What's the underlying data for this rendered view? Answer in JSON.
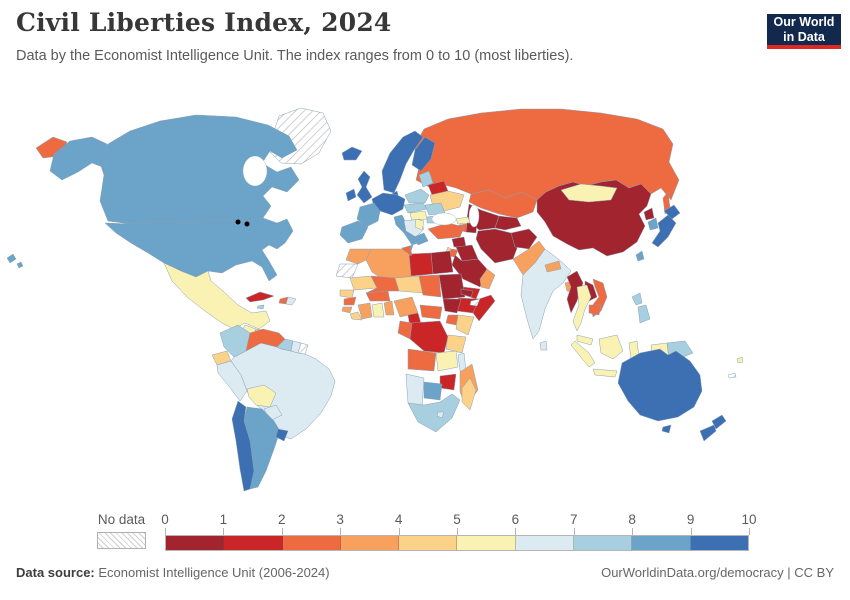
{
  "header": {
    "title": "Civil Liberties Index, 2024",
    "subtitle": "Data by the Economist Intelligence Unit. The index ranges from 0 to 10 (most liberties).",
    "logo": {
      "line1": "Our World",
      "line2": "in Data"
    }
  },
  "footer": {
    "data_source_label": "Data source:",
    "data_source_value": " Economist Intelligence Unit (2006-2024)",
    "url": "OurWorldinData.org/democracy",
    "separator": " | ",
    "license": "CC BY"
  },
  "chart_data": {
    "type": "heatmap",
    "subtype": "world-choropleth",
    "title": "Civil Liberties Index, 2024",
    "year": "2024",
    "unit_range": [
      0,
      10
    ],
    "scale": {
      "no_data_label": "No data",
      "ticks": [
        "0",
        "1",
        "2",
        "3",
        "4",
        "5",
        "6",
        "7",
        "8",
        "9",
        "10"
      ],
      "bin_labels": [
        "0-1",
        "1-2",
        "2-3",
        "3-4",
        "4-5",
        "5-6",
        "6-7",
        "7-8",
        "8-9",
        "9-10"
      ],
      "bin_colors": [
        "#a2242f",
        "#ca2628",
        "#ee6a40",
        "#f8a15e",
        "#fbd287",
        "#faf2b2",
        "#dcebf2",
        "#a7cfe0",
        "#6ba3c9",
        "#3d6fb3"
      ]
    },
    "regions": {
      "canada": 8,
      "alaska": 8,
      "usa": 8,
      "hawaii": 8,
      "greenland": "nodata",
      "mexico": 5,
      "guatemala": 5,
      "honduras": 4,
      "nicaragua": 0,
      "costa-rica": 9,
      "panama": 7,
      "cuba": 1,
      "haiti": 2,
      "dominican-republic": 6,
      "jamaica": 7,
      "colombia": 7,
      "venezuela": 2,
      "guyana": 7,
      "suriname": 6,
      "french-guiana": "nodata",
      "ecuador": 4,
      "peru": 6,
      "brazil": 6,
      "bolivia": 5,
      "paraguay": 6,
      "chile": 9,
      "argentina": 8,
      "uruguay": 9,
      "iceland": 9,
      "ireland": 9,
      "uk": 9,
      "scandinavia": 9,
      "denmark": 9,
      "finland": 9,
      "baltics": 7,
      "germany-central": 9,
      "france": 8,
      "iberia": 8,
      "italy": 8,
      "sicily": 8,
      "poland": 7,
      "czech-slovakia": 7,
      "hungary": 5,
      "balkans": 6,
      "serbia": 5,
      "greece": 8,
      "romania": 7,
      "bulgaria": 7,
      "belarus": 1,
      "ukraine": 4,
      "russia": 2,
      "chukotka": 2,
      "sakhalin": 2,
      "kazakhstan": 2,
      "uzbekistan-turkmenistan": 0,
      "kyrgyzstan-tajikistan": 0,
      "georgia": 5,
      "armenia": 2,
      "azerbaijan": 0,
      "turkey": 2,
      "syria": 0,
      "iraq": 0,
      "iran": 0,
      "afghanistan": 0,
      "pakistan": 3,
      "israel": 4,
      "jordan": 2,
      "saudi-arabia": 0,
      "yemen": 1,
      "oman": 3,
      "egypt": 0,
      "libya": 1,
      "tunisia": 2,
      "algeria": 3,
      "morocco": 3,
      "western-sahara": "nodata",
      "mauritania": 4,
      "senegal": 4,
      "guinea": 2,
      "sierra-leone": 3,
      "liberia": 4,
      "ivory-coast": 3,
      "ghana": 5,
      "togo-benin": 3,
      "burkina-faso": 2,
      "mali": 2,
      "niger": 4,
      "nigeria": 3,
      "chad": 2,
      "sudan": 0,
      "eritrea": 0,
      "ethiopia": 1,
      "somalia": 1,
      "somaliland": "nodata",
      "south-sudan": 0,
      "cameroon": 1,
      "central-african-republic": 2,
      "uganda": 2,
      "kenya": 4,
      "congo-gabon": 2,
      "drc": 1,
      "tanzania": 4,
      "angola": 2,
      "zambia": 5,
      "malawi": 6,
      "mozambique": 3,
      "zimbabwe": 1,
      "botswana": 8,
      "namibia": 6,
      "south-africa": 7,
      "lesotho": 6,
      "madagascar": 4,
      "china": 0,
      "mongolia": 5,
      "north-korea": 0,
      "south-korea": 8,
      "japan": 9,
      "taiwan": 8,
      "india": 6,
      "nepal": 3,
      "bangladesh": 3,
      "sri-lanka": 6,
      "myanmar": 0,
      "thailand": 5,
      "laos": 0,
      "vietnam": 2,
      "cambodia": 2,
      "malaysia": 5,
      "indonesia": 5,
      "papua-new-guinea": 7,
      "philippines": 7,
      "australia": 9,
      "tasmania": 9,
      "new-zealand": 9,
      "fiji": 5,
      "new-caledonia": "nodata"
    }
  }
}
